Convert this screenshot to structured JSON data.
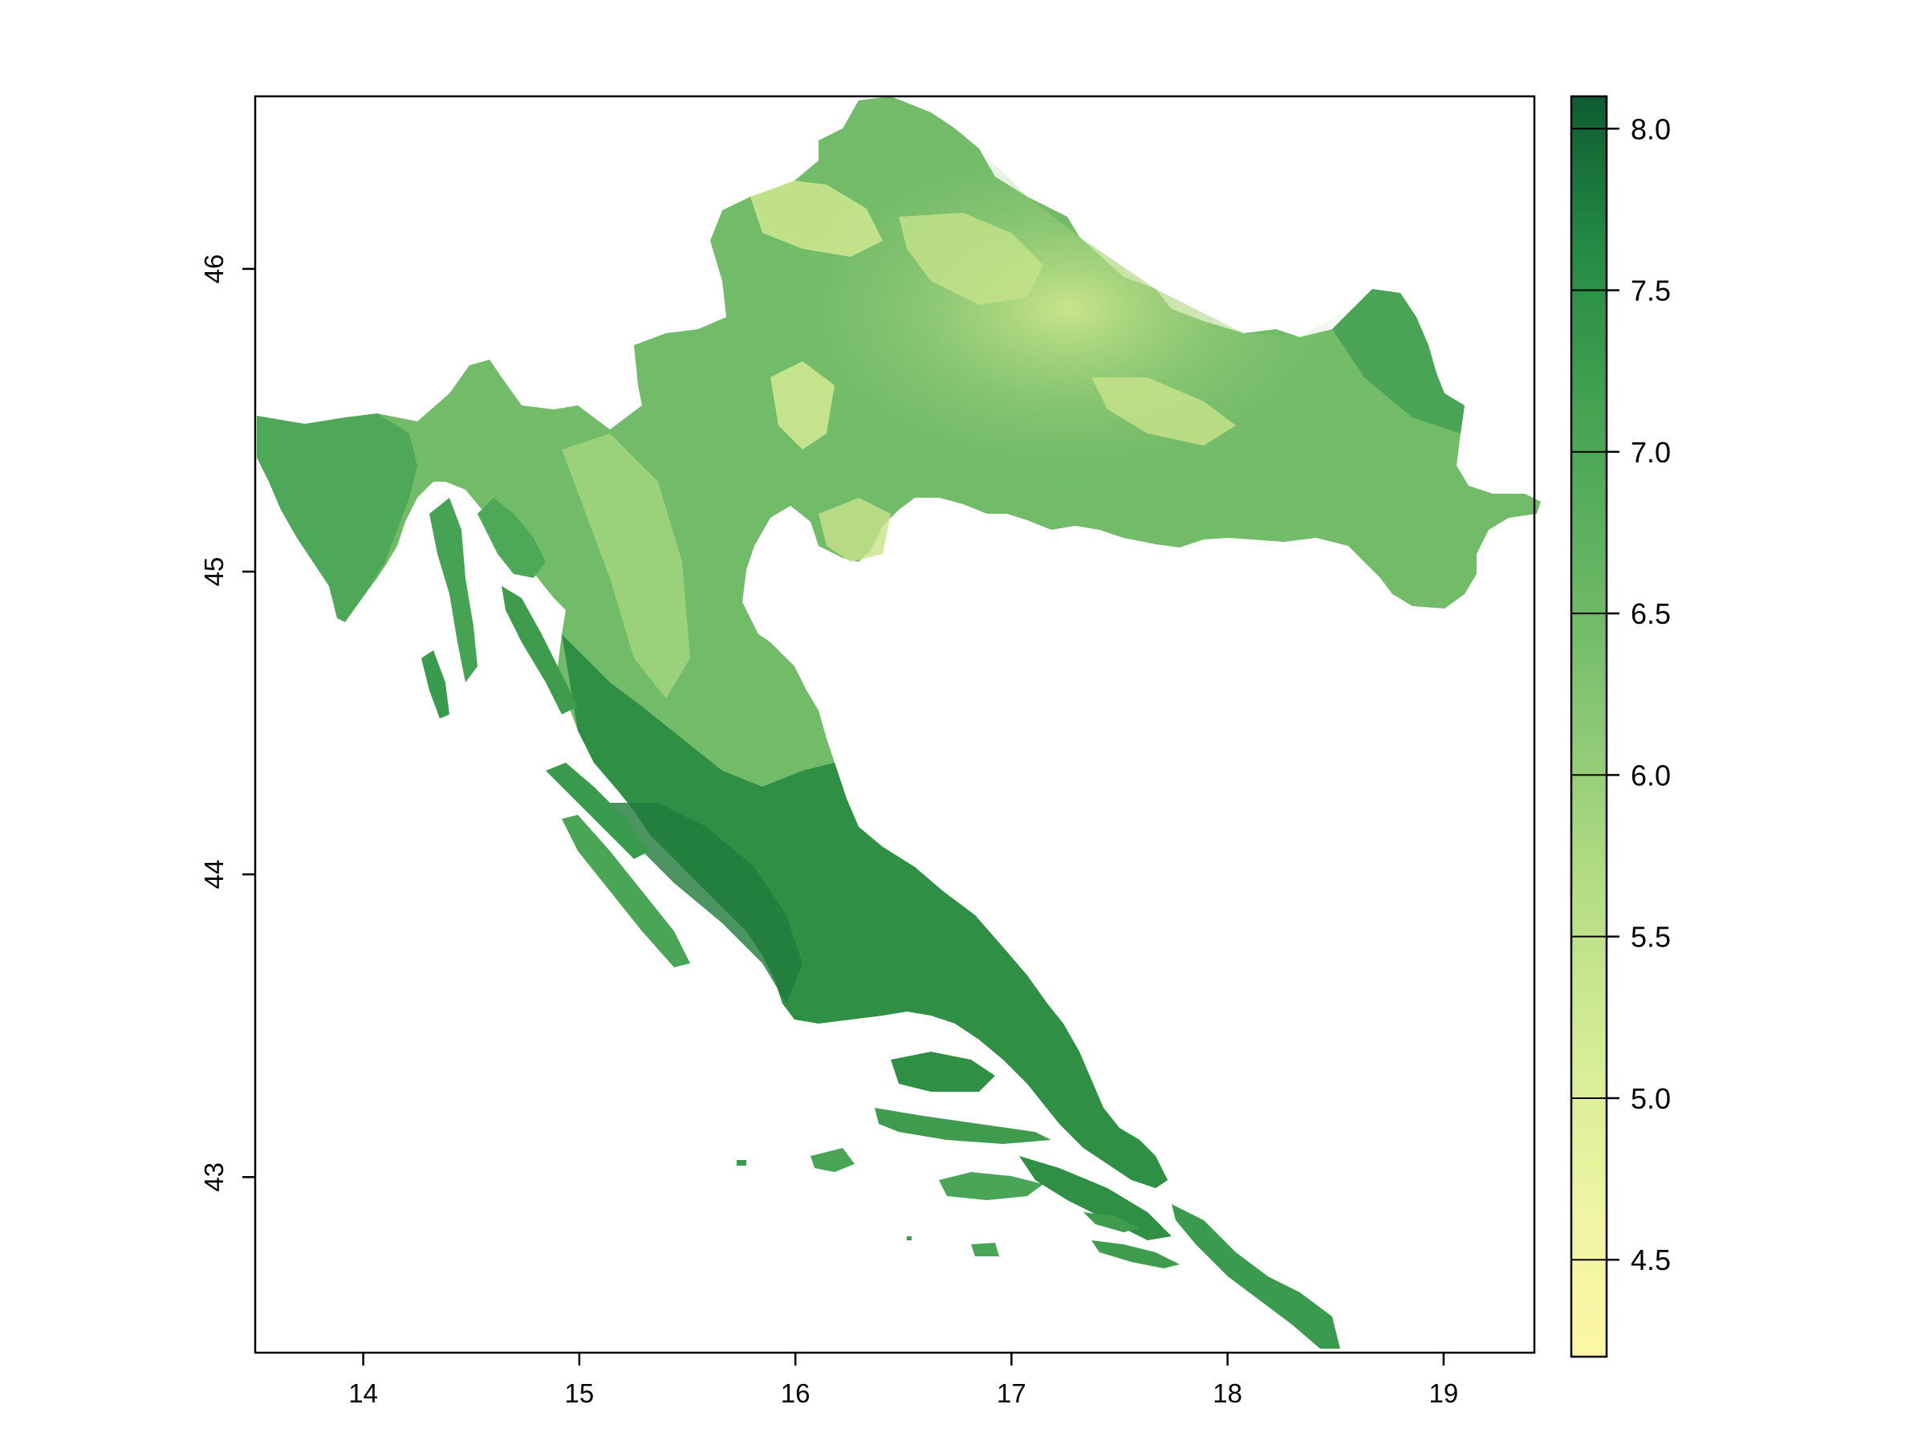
{
  "map": {
    "x_ticks": [
      "14",
      "15",
      "16",
      "17",
      "18",
      "19"
    ],
    "y_ticks": [
      "43",
      "44",
      "45",
      "46"
    ],
    "x_range": [
      13.5,
      19.42
    ],
    "y_range": [
      42.42,
      46.57
    ],
    "x_tick_values": [
      14,
      15,
      16,
      17,
      18,
      19
    ],
    "y_tick_values": [
      43,
      44,
      45,
      46
    ]
  },
  "legend": {
    "range": [
      4.2,
      8.1
    ],
    "tick_values": [
      4.5,
      5.0,
      5.5,
      6.0,
      6.5,
      7.0,
      7.5,
      8.0
    ],
    "tick_labels": [
      "4.5",
      "5.0",
      "5.5",
      "6.0",
      "6.5",
      "7.0",
      "7.5",
      "8.0"
    ],
    "colors": [
      "#ffffbf",
      "#fbf8a9",
      "#e3f3a1",
      "#c6e68e",
      "#a3d47f",
      "#7cc16f",
      "#5ab05f",
      "#389d4d",
      "#238a43",
      "#16713a",
      "#0e5b30"
    ]
  },
  "colors": {
    "frame": "#000000",
    "background": "#ffffff"
  }
}
